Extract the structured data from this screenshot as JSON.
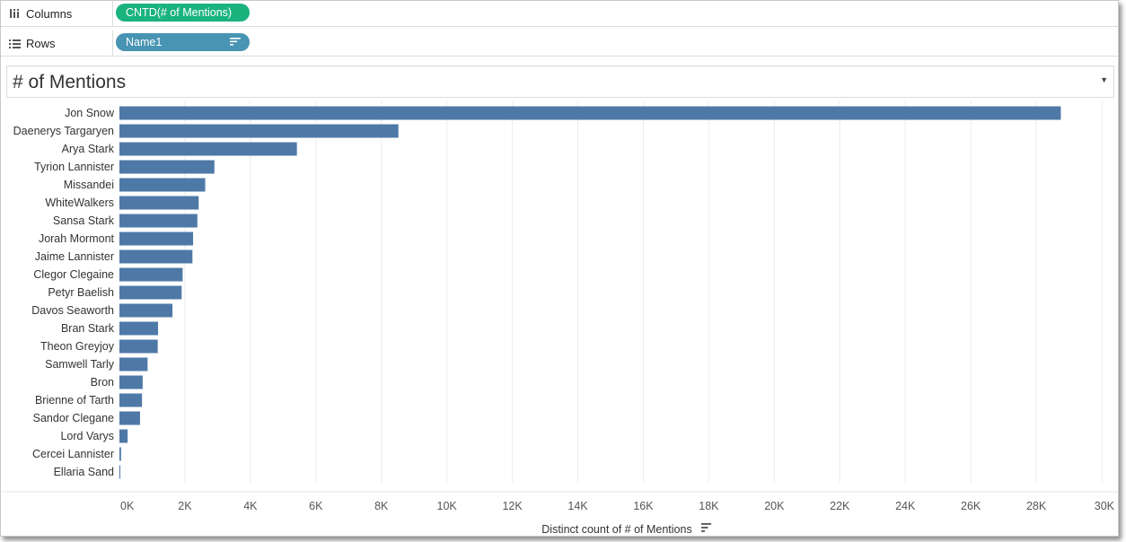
{
  "shelves": {
    "columns": {
      "label": "Columns",
      "pill": "CNTD(# of Mentions)"
    },
    "rows": {
      "label": "Rows",
      "pill": "Name1"
    }
  },
  "colors": {
    "bar": "#4e79a7",
    "pill_green": "#1ab37e",
    "pill_blue": "#4794b3"
  },
  "chart_data": {
    "type": "bar",
    "orientation": "horizontal",
    "title": "# of Mentions",
    "xlabel": "Distinct count of # of Mentions",
    "xlim": [
      0,
      30000
    ],
    "grid": true,
    "ticks": [
      "0K",
      "2K",
      "4K",
      "6K",
      "8K",
      "10K",
      "12K",
      "14K",
      "16K",
      "18K",
      "20K",
      "22K",
      "24K",
      "26K",
      "28K",
      "30K"
    ],
    "tick_values": [
      0,
      2000,
      4000,
      6000,
      8000,
      10000,
      12000,
      14000,
      16000,
      18000,
      20000,
      22000,
      24000,
      26000,
      28000,
      30000
    ],
    "categories": [
      "Jon Snow",
      "Daenerys Targaryen",
      "Arya Stark",
      "Tyrion Lannister",
      "Missandei",
      "WhiteWalkers",
      "Sansa Stark",
      "Jorah Mormont",
      "Jaime Lannister",
      "Clegor Clegaine",
      "Petyr Baelish",
      "Davos Seaworth",
      "Bran Stark",
      "Theon Greyjoy",
      "Samwell Tarly",
      "Bron",
      "Brienne of Tarth",
      "Sandor Clegane",
      "Lord Varys",
      "Cercei Lannister",
      "Ellaria Sand"
    ],
    "values": [
      28750,
      8520,
      5420,
      2900,
      2620,
      2420,
      2380,
      2250,
      2230,
      1930,
      1900,
      1620,
      1180,
      1170,
      860,
      710,
      690,
      630,
      250,
      50,
      20
    ]
  }
}
